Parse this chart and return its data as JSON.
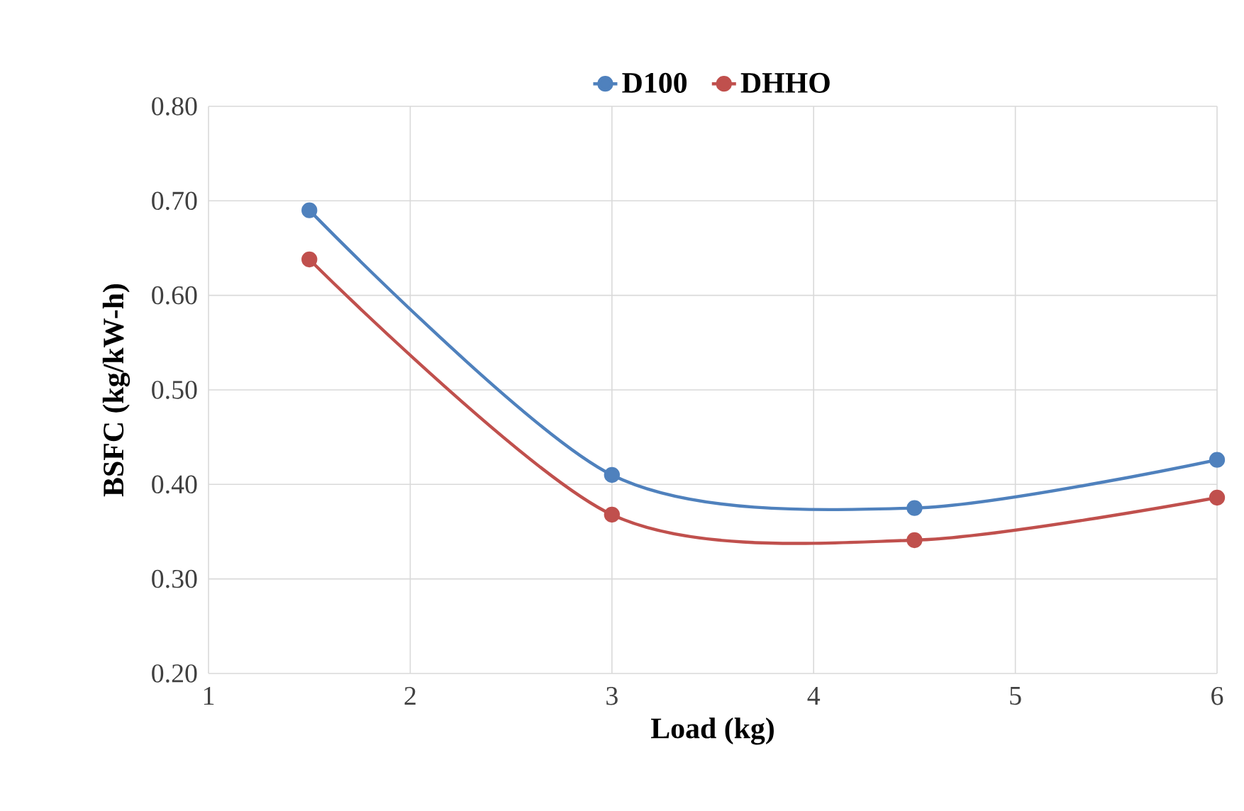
{
  "chart_data": {
    "type": "line",
    "xlabel": "Load (kg)",
    "ylabel": "BSFC (kg/kW-h)",
    "x": [
      1.5,
      3,
      4.5,
      6
    ],
    "series": [
      {
        "name": "D100",
        "color": "#4f81bd",
        "values": [
          0.69,
          0.41,
          0.375,
          0.426
        ]
      },
      {
        "name": "DHHO",
        "color": "#c0504d",
        "values": [
          0.638,
          0.368,
          0.341,
          0.386
        ]
      }
    ],
    "xlim": [
      1,
      6
    ],
    "xticks": [
      1,
      2,
      3,
      4,
      5,
      6
    ],
    "ylim": [
      0.2,
      0.8
    ],
    "yticks": [
      {
        "value": 0.2,
        "label": "0.20"
      },
      {
        "value": 0.3,
        "label": "0.30"
      },
      {
        "value": 0.4,
        "label": "0.40"
      },
      {
        "value": 0.5,
        "label": "0.50"
      },
      {
        "value": 0.6,
        "label": "0.60"
      },
      {
        "value": 0.7,
        "label": "0.70"
      },
      {
        "value": 0.8,
        "label": "0.80"
      }
    ],
    "grid": true,
    "legend": "top",
    "marker": "circle",
    "line_style": "solid"
  }
}
